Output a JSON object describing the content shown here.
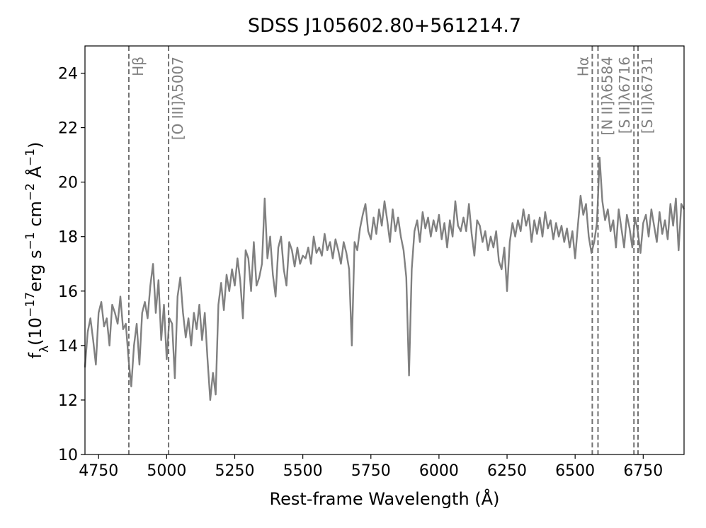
{
  "chart_data": {
    "type": "line",
    "title": "SDSS J105602.80+561214.7",
    "xlabel": "Rest-frame Wavelength (Å)",
    "ylabel": [
      {
        "text": "f"
      },
      {
        "sub": "λ"
      },
      {
        "text": "(10"
      },
      {
        "sup": "−17"
      },
      {
        "text": "erg s"
      },
      {
        "sup": "−1"
      },
      {
        "text": " cm"
      },
      {
        "sup": "−2"
      },
      {
        "text": " Å"
      },
      {
        "sup": "−1"
      },
      {
        "text": ")"
      }
    ],
    "color": "#808080",
    "xlim": [
      4700,
      6900
    ],
    "xticks": [
      4750,
      5000,
      5250,
      5500,
      5750,
      6000,
      6250,
      6500,
      6750
    ],
    "ylim": [
      10,
      25
    ],
    "yticks": [
      10,
      12,
      14,
      16,
      18,
      20,
      22,
      24
    ],
    "lines": [
      {
        "label": "Hβ",
        "x": 4861
      },
      {
        "label": "[O III]λ5007",
        "x": 5007
      },
      {
        "label": "Hα",
        "x": 6563
      },
      {
        "label": "[N II]λ6584",
        "x": 6584
      },
      {
        "label": "[S II]λ6716",
        "x": 6716
      },
      {
        "label": "[S II]λ6731",
        "x": 6731
      }
    ],
    "line_color": "#707070",
    "x": [
      4700,
      4710,
      4720,
      4730,
      4740,
      4750,
      4760,
      4770,
      4780,
      4790,
      4800,
      4810,
      4820,
      4830,
      4840,
      4850,
      4860,
      4870,
      4880,
      4890,
      4900,
      4910,
      4920,
      4930,
      4940,
      4950,
      4960,
      4970,
      4980,
      4990,
      5000,
      5010,
      5020,
      5030,
      5040,
      5050,
      5060,
      5070,
      5080,
      5090,
      5100,
      5110,
      5120,
      5130,
      5140,
      5150,
      5160,
      5170,
      5180,
      5190,
      5200,
      5210,
      5220,
      5230,
      5240,
      5250,
      5260,
      5270,
      5280,
      5290,
      5300,
      5310,
      5320,
      5330,
      5340,
      5350,
      5360,
      5370,
      5380,
      5390,
      5400,
      5410,
      5420,
      5430,
      5440,
      5450,
      5460,
      5470,
      5480,
      5490,
      5500,
      5510,
      5520,
      5530,
      5540,
      5550,
      5560,
      5570,
      5580,
      5590,
      5600,
      5610,
      5620,
      5630,
      5640,
      5650,
      5660,
      5670,
      5680,
      5690,
      5700,
      5710,
      5720,
      5730,
      5740,
      5750,
      5760,
      5770,
      5780,
      5790,
      5800,
      5810,
      5820,
      5830,
      5840,
      5850,
      5860,
      5870,
      5880,
      5890,
      5900,
      5910,
      5920,
      5930,
      5940,
      5950,
      5960,
      5970,
      5980,
      5990,
      6000,
      6010,
      6020,
      6030,
      6040,
      6050,
      6060,
      6070,
      6080,
      6090,
      6100,
      6110,
      6120,
      6130,
      6140,
      6150,
      6160,
      6170,
      6180,
      6190,
      6200,
      6210,
      6220,
      6230,
      6240,
      6250,
      6260,
      6270,
      6280,
      6290,
      6300,
      6310,
      6320,
      6330,
      6340,
      6350,
      6360,
      6370,
      6380,
      6390,
      6400,
      6410,
      6420,
      6430,
      6440,
      6450,
      6460,
      6470,
      6480,
      6490,
      6500,
      6510,
      6520,
      6530,
      6540,
      6550,
      6560,
      6570,
      6580,
      6590,
      6600,
      6610,
      6620,
      6630,
      6640,
      6650,
      6660,
      6670,
      6680,
      6690,
      6700,
      6710,
      6720,
      6730,
      6740,
      6750,
      6760,
      6770,
      6780,
      6790,
      6800,
      6810,
      6820,
      6830,
      6840,
      6850,
      6860,
      6870,
      6880,
      6890,
      6900
    ],
    "values": [
      13.2,
      14.5,
      15.0,
      14.2,
      13.3,
      15.2,
      15.6,
      14.7,
      15.0,
      14.0,
      15.5,
      15.2,
      14.8,
      15.8,
      14.6,
      14.8,
      13.5,
      12.5,
      14.0,
      14.8,
      13.3,
      15.2,
      15.6,
      15.0,
      16.2,
      17.0,
      15.2,
      16.4,
      14.2,
      15.5,
      13.5,
      15.0,
      14.8,
      12.8,
      15.8,
      16.5,
      15.2,
      14.3,
      15.0,
      14.0,
      15.2,
      14.6,
      15.5,
      14.2,
      15.2,
      13.5,
      12.0,
      13.0,
      12.2,
      15.5,
      16.3,
      15.3,
      16.6,
      16.0,
      16.8,
      16.2,
      17.2,
      16.4,
      15.0,
      17.5,
      17.2,
      16.0,
      17.8,
      16.2,
      16.5,
      17.0,
      19.4,
      17.2,
      18.0,
      16.6,
      15.8,
      17.6,
      18.0,
      16.8,
      16.2,
      17.8,
      17.5,
      16.9,
      17.6,
      17.0,
      17.3,
      17.2,
      17.6,
      17.0,
      18.0,
      17.4,
      17.6,
      17.3,
      18.1,
      17.5,
      17.8,
      17.2,
      17.9,
      17.5,
      17.0,
      17.8,
      17.4,
      16.8,
      14.0,
      17.8,
      17.5,
      18.3,
      18.8,
      19.2,
      18.2,
      17.9,
      18.7,
      18.1,
      19.0,
      18.4,
      19.3,
      18.6,
      17.8,
      19.0,
      18.2,
      18.7,
      18.0,
      17.5,
      16.5,
      12.9,
      16.8,
      18.2,
      18.6,
      17.8,
      18.9,
      18.3,
      18.7,
      18.0,
      18.6,
      18.2,
      18.8,
      17.9,
      18.5,
      17.6,
      18.6,
      18.0,
      19.3,
      18.4,
      18.2,
      18.7,
      18.2,
      19.2,
      18.1,
      17.3,
      18.6,
      18.4,
      17.8,
      18.2,
      17.5,
      18.0,
      17.6,
      18.2,
      17.1,
      16.8,
      17.6,
      16.0,
      17.8,
      18.5,
      18.0,
      18.6,
      18.2,
      19.0,
      18.4,
      18.8,
      17.8,
      18.6,
      18.1,
      18.7,
      18.0,
      18.9,
      18.3,
      18.6,
      17.9,
      18.5,
      18.0,
      18.4,
      17.8,
      18.3,
      17.6,
      18.2,
      17.2,
      18.4,
      19.5,
      18.8,
      19.2,
      18.0,
      17.4,
      17.8,
      18.5,
      20.9,
      19.3,
      18.6,
      19.0,
      18.2,
      18.6,
      17.6,
      19.0,
      18.3,
      17.6,
      18.8,
      18.3,
      17.6,
      18.7,
      18.2,
      17.4,
      18.5,
      18.8,
      18.0,
      19.0,
      18.4,
      17.8,
      18.9,
      18.1,
      18.6,
      17.9,
      19.2,
      18.4,
      19.4,
      17.5,
      19.2,
      19.0
    ]
  }
}
